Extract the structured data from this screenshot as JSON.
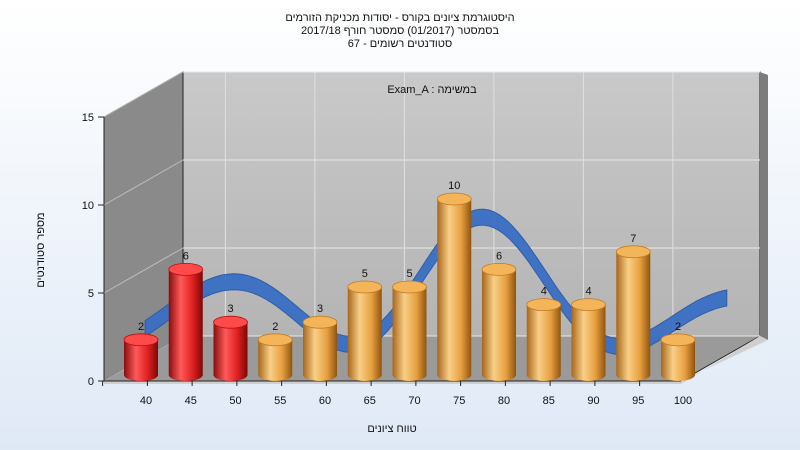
{
  "chart_data": {
    "type": "bar",
    "title_lines": [
      "היסטוגרמת ציונים בקורס - יסודות מכניקת הזורמים",
      "בסמסטר  (01/2017)  סמסטר חורף 2017/18",
      "סטודנטים רשומים - 67"
    ],
    "annotation": "Exam_A : במשימה",
    "xlabel": "טווח ציונים",
    "ylabel": "מספר סטודנטים",
    "categories": [
      "40",
      "45",
      "50",
      "55",
      "60",
      "65",
      "70",
      "75",
      "80",
      "85",
      "90",
      "95",
      "100"
    ],
    "values": [
      2,
      6,
      3,
      2,
      3,
      5,
      5,
      10,
      6,
      4,
      4,
      7,
      2
    ],
    "ylim": [
      0,
      15
    ],
    "yticks": [
      0,
      5,
      10,
      15
    ],
    "bar_colors": [
      "#e02020",
      "#e02020",
      "#e02020",
      "#e8a040",
      "#e8a040",
      "#e8a040",
      "#e8a040",
      "#e8a040",
      "#e8a040",
      "#e8a040",
      "#e8a040",
      "#e8a040",
      "#e8a040"
    ],
    "curve_color": "#3a6fc4",
    "grid": true
  }
}
